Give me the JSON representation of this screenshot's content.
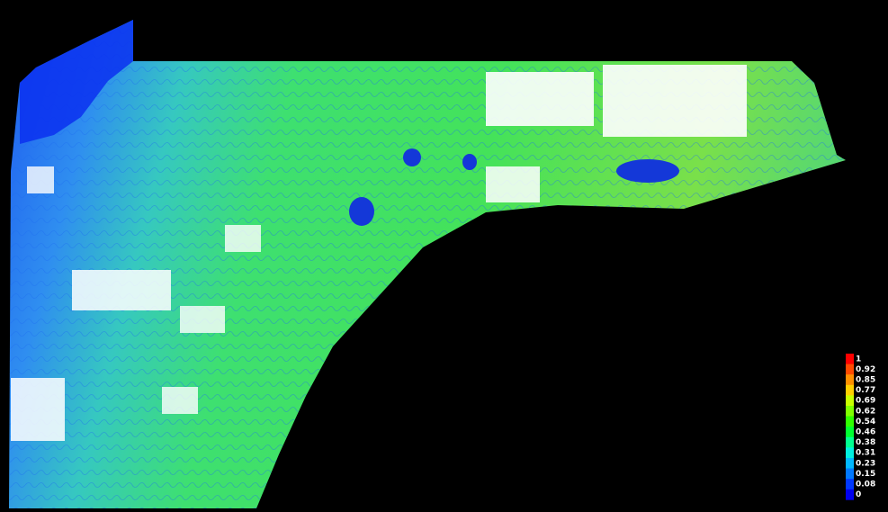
{
  "legend": {
    "entries": [
      {
        "label": "1",
        "color": "#ff0000"
      },
      {
        "label": "0.92",
        "color": "#ff4a00"
      },
      {
        "label": "0.85",
        "color": "#ff9000"
      },
      {
        "label": "0.77",
        "color": "#ffd000"
      },
      {
        "label": "0.69",
        "color": "#c8ff00"
      },
      {
        "label": "0.62",
        "color": "#80ff00"
      },
      {
        "label": "0.54",
        "color": "#30ff00"
      },
      {
        "label": "0.46",
        "color": "#00ff30"
      },
      {
        "label": "0.38",
        "color": "#00ff90"
      },
      {
        "label": "0.31",
        "color": "#00f0e0"
      },
      {
        "label": "0.23",
        "color": "#00b8ff"
      },
      {
        "label": "0.15",
        "color": "#0078ff"
      },
      {
        "label": "0.08",
        "color": "#0038ff"
      },
      {
        "label": "0",
        "color": "#0000f0"
      }
    ]
  }
}
